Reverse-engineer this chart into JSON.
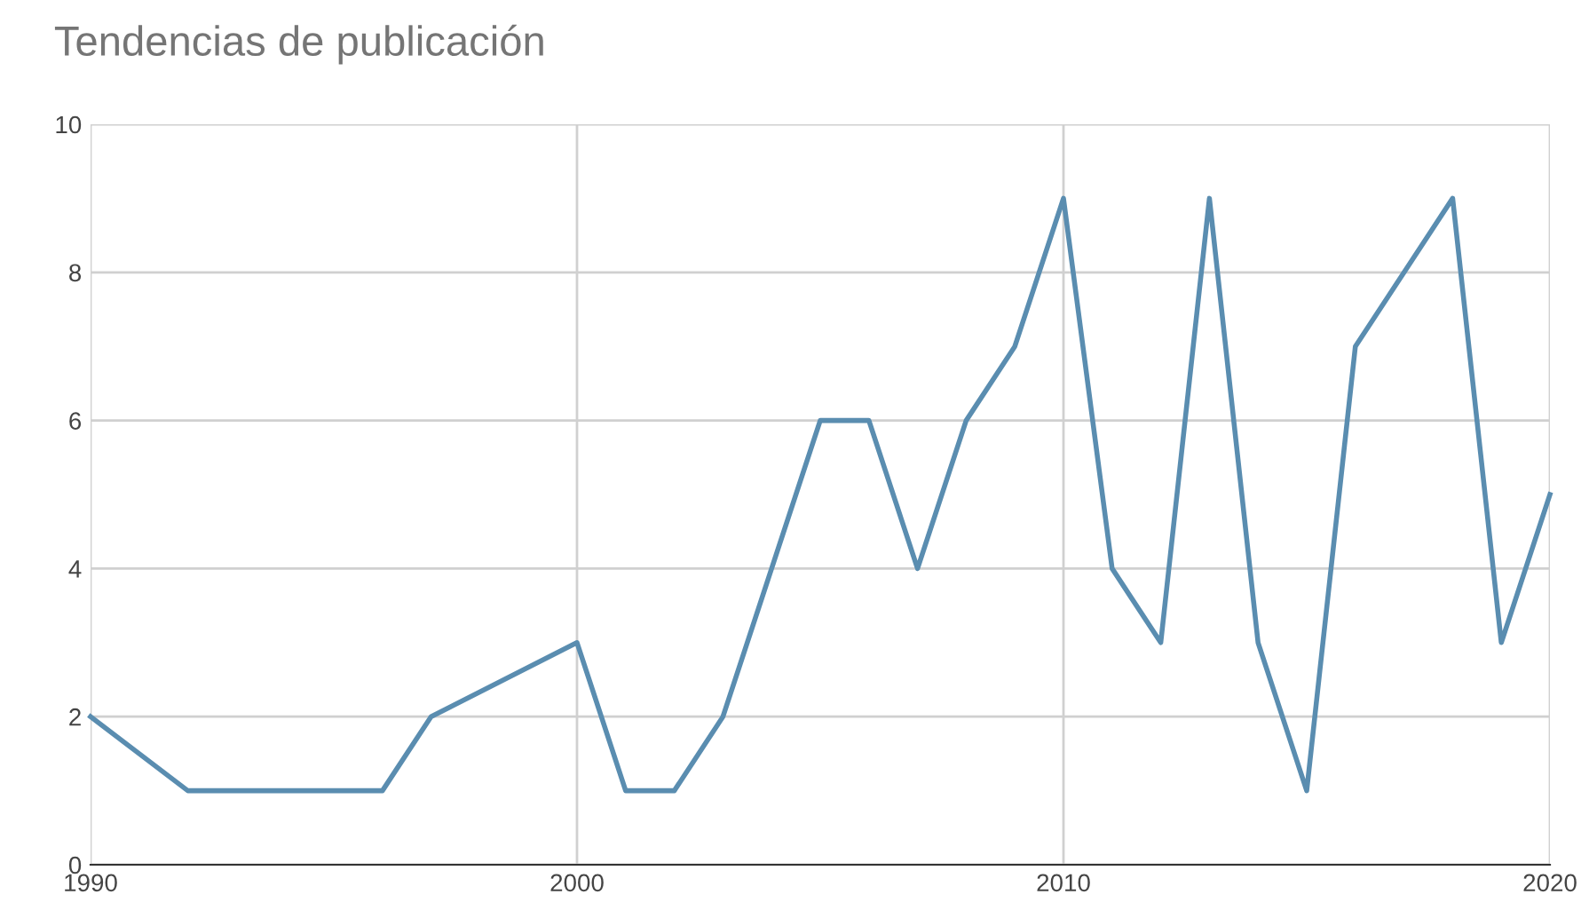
{
  "chart_data": {
    "type": "line",
    "title": "Tendencias de publicación",
    "x": [
      1990,
      1992,
      1996,
      1997,
      2000,
      2001,
      2002,
      2003,
      2005,
      2006,
      2007,
      2008,
      2009,
      2010,
      2011,
      2012,
      2013,
      2014,
      2015,
      2016,
      2018,
      2019,
      2020
    ],
    "series": [
      {
        "color": "#5a8db0",
        "values": [
          2,
          1,
          1,
          2,
          3,
          1,
          1,
          2,
          6,
          6,
          4,
          6,
          7,
          9,
          4,
          3,
          9,
          3,
          1,
          7,
          9,
          3,
          5
        ]
      }
    ],
    "xlim": [
      1990,
      2020
    ],
    "xticks": [
      1990,
      2000,
      2010,
      2020
    ],
    "ylim": [
      0,
      10
    ],
    "yticks": [
      0,
      2,
      4,
      6,
      8,
      10
    ],
    "grid": true,
    "legend": false,
    "marker": "none",
    "line_style": "solid"
  }
}
